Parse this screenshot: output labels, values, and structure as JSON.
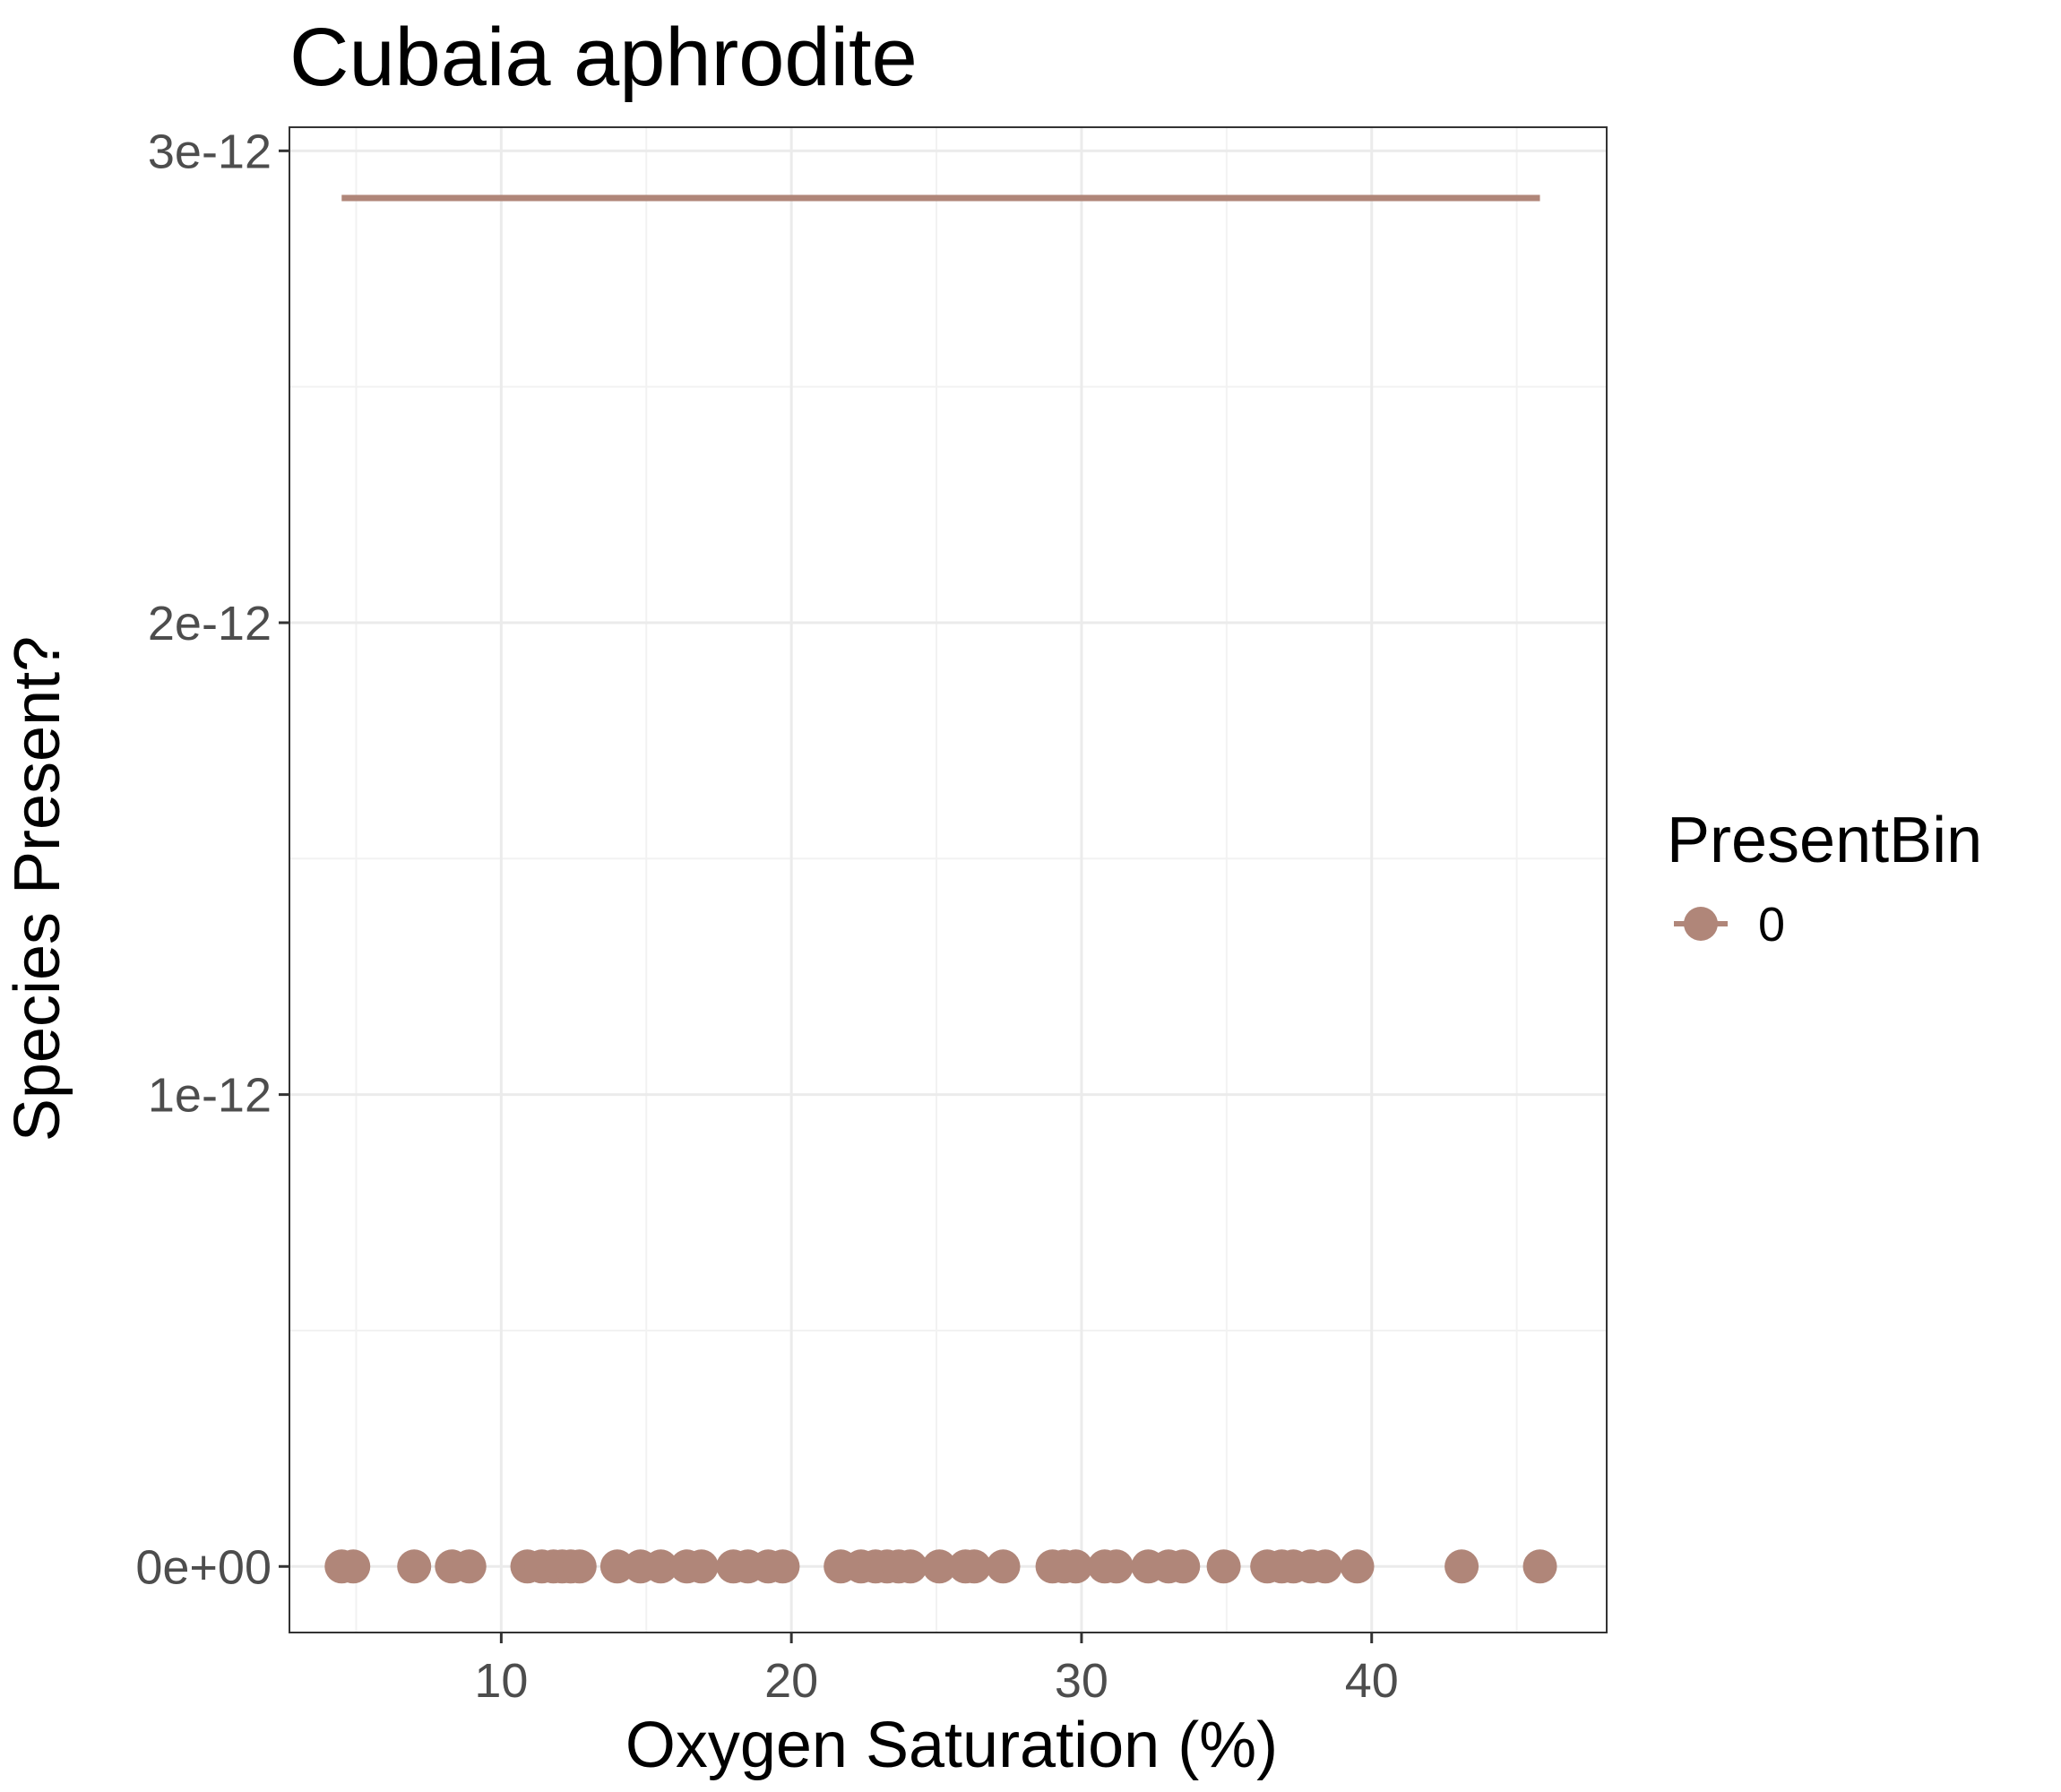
{
  "chart_data": {
    "type": "scatter",
    "title": "Cubaia aphrodite",
    "xlabel": "Oxygen Saturation (%)",
    "ylabel": "Species Present?",
    "xlim": [
      2.7,
      48.1
    ],
    "ylim": [
      -1.4e-13,
      3.05e-12
    ],
    "x_ticks": [
      10,
      20,
      30,
      40
    ],
    "x_tick_labels": [
      "10",
      "20",
      "30",
      "40"
    ],
    "y_ticks": [
      0,
      1e-12,
      2e-12,
      3e-12
    ],
    "y_tick_labels": [
      "0e+00",
      "1e-12",
      "2e-12",
      "3e-12"
    ],
    "grid": true,
    "legend": {
      "title": "PresentBin",
      "position": "right"
    },
    "series": [
      {
        "name": "0",
        "color": "#b08679",
        "points_x": [
          4.5,
          4.9,
          7.0,
          8.3,
          8.9,
          10.9,
          11.4,
          11.8,
          12.1,
          12.4,
          12.7,
          14.0,
          14.8,
          15.5,
          16.4,
          16.9,
          18.0,
          18.5,
          19.2,
          19.7,
          21.7,
          22.4,
          22.9,
          23.3,
          23.7,
          24.1,
          25.1,
          26.0,
          26.3,
          27.3,
          29.0,
          29.4,
          29.8,
          30.8,
          31.2,
          32.3,
          33.0,
          33.5,
          34.9,
          36.4,
          36.9,
          37.3,
          37.9,
          38.4,
          39.5,
          43.1,
          45.8
        ],
        "points_y": [
          0,
          0,
          0,
          0,
          0,
          0,
          0,
          0,
          0,
          0,
          0,
          0,
          0,
          0,
          0,
          0,
          0,
          0,
          0,
          0,
          0,
          0,
          0,
          0,
          0,
          0,
          0,
          0,
          0,
          0,
          0,
          0,
          0,
          0,
          0,
          0,
          0,
          0,
          0,
          0,
          0,
          0,
          0,
          0,
          0,
          0,
          0
        ],
        "fit_line": {
          "x": [
            4.5,
            45.8
          ],
          "y": [
            2.9e-12,
            2.9e-12
          ]
        }
      }
    ]
  }
}
